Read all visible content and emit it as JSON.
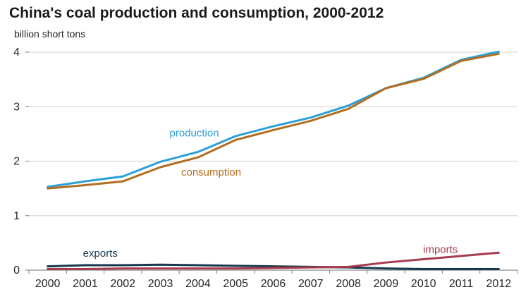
{
  "title": "China's coal production and consumption, 2000-2012",
  "colors": {
    "grid": "#d9d9d9",
    "axis": "#8c8c8c",
    "tick": "#8c8c8c",
    "text": "#262626",
    "title_text": "#1a1a1a"
  },
  "chart_data": {
    "type": "line",
    "title": "China's coal production and consumption, 2000-2012",
    "ylabel": "billion short tons",
    "xlabel": "",
    "x": [
      2000,
      2001,
      2002,
      2003,
      2004,
      2005,
      2006,
      2007,
      2008,
      2009,
      2010,
      2011,
      2012
    ],
    "ylim": [
      0,
      4
    ],
    "yticks": [
      0,
      1,
      2,
      3,
      4
    ],
    "grid": true,
    "legend": "inline-labels",
    "series": [
      {
        "name": "production",
        "color": "#2b9fd8",
        "values": [
          1.53,
          1.63,
          1.72,
          1.99,
          2.17,
          2.46,
          2.64,
          2.8,
          3.02,
          3.34,
          3.53,
          3.86,
          4.01
        ]
      },
      {
        "name": "consumption",
        "color": "#b26e20",
        "values": [
          1.5,
          1.56,
          1.63,
          1.89,
          2.07,
          2.39,
          2.57,
          2.74,
          2.96,
          3.34,
          3.51,
          3.84,
          3.97
        ]
      },
      {
        "name": "exports",
        "color": "#16384e",
        "values": [
          0.07,
          0.09,
          0.09,
          0.1,
          0.09,
          0.08,
          0.07,
          0.06,
          0.05,
          0.03,
          0.02,
          0.02,
          0.02
        ]
      },
      {
        "name": "imports",
        "color": "#a63b4c",
        "values": [
          0.02,
          0.02,
          0.03,
          0.03,
          0.03,
          0.03,
          0.04,
          0.05,
          0.06,
          0.14,
          0.2,
          0.26,
          0.32
        ]
      }
    ],
    "annotations": [
      {
        "text": "production",
        "x": 2003.9,
        "y": 2.52,
        "color": "#2b9fd8"
      },
      {
        "text": "consumption",
        "x": 2004.35,
        "y": 1.8,
        "color": "#b26e20"
      },
      {
        "text": "exports",
        "x": 2001.4,
        "y": 0.31,
        "color": "#16384e"
      },
      {
        "text": "imports",
        "x": 2010.45,
        "y": 0.38,
        "color": "#a63b4c"
      }
    ]
  }
}
